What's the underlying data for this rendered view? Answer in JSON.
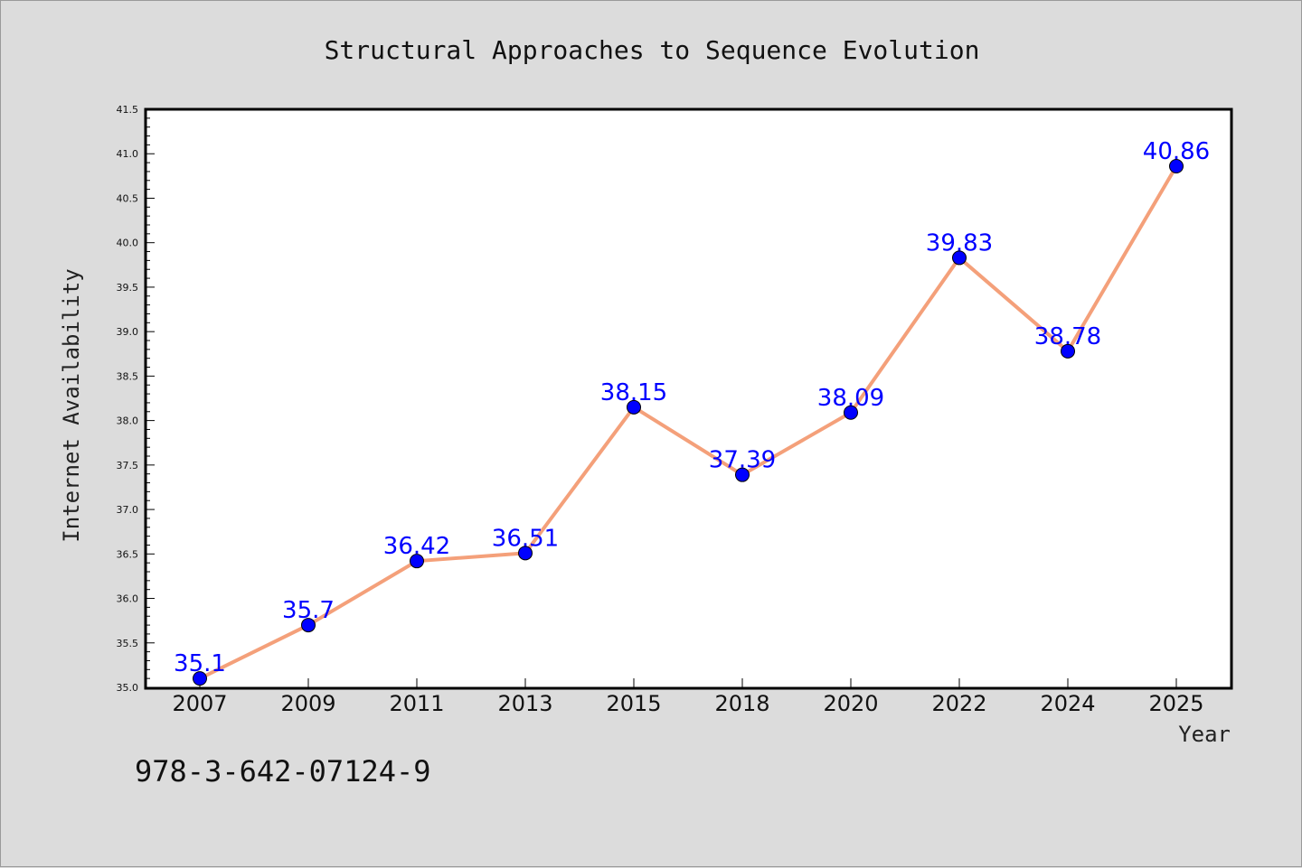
{
  "chart_data": {
    "type": "line",
    "title": "Structural Approaches to Sequence Evolution",
    "xlabel": "Year",
    "ylabel": "Internet Availability",
    "categories": [
      "2007",
      "2009",
      "2011",
      "2013",
      "2015",
      "2018",
      "2020",
      "2022",
      "2024",
      "2025"
    ],
    "series": [
      {
        "values": [
          35.1,
          35.7,
          36.42,
          36.51,
          38.15,
          37.39,
          38.09,
          39.83,
          38.78,
          40.86
        ],
        "labels": [
          "35.1",
          "35.7",
          "36.42",
          "36.51",
          "38.15",
          "37.39",
          "38.09",
          "39.83",
          "38.78",
          "40.86"
        ],
        "line_color": "#f4a07a",
        "marker_color": "#0000ff"
      }
    ],
    "ylim": [
      35.0,
      41.5
    ],
    "yticks": [
      "35.0",
      "35.5",
      "36.0",
      "36.5",
      "37.0",
      "37.5",
      "38.0",
      "38.5",
      "39.0",
      "39.5",
      "40.0",
      "40.5",
      "41.0",
      "41.5"
    ],
    "grid": false,
    "legend": "none"
  },
  "footer": {
    "isbn": "978-3-642-07124-9"
  },
  "colors": {
    "background": "#dcdcdc",
    "plot_background": "#ffffff",
    "axis": "#000000",
    "data_label": "#0000ff"
  }
}
